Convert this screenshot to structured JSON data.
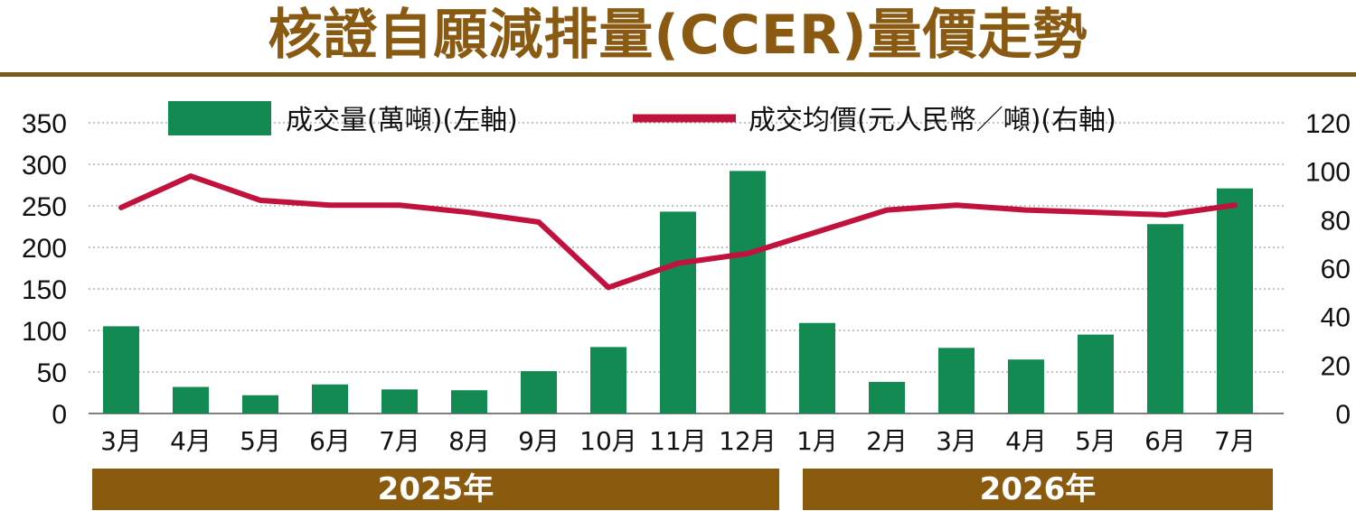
{
  "colors": {
    "title": "#8a5a12",
    "bar": "#128a52",
    "line": "#c0123c",
    "band": "#8a5a0f",
    "rule": "#7a5a1c"
  },
  "header": {
    "title": "核證自願減排量(CCER)量價走勢"
  },
  "chart_data": {
    "type": "bar+line",
    "categories": [
      "3月",
      "4月",
      "5月",
      "6月",
      "7月",
      "8月",
      "9月",
      "10月",
      "11月",
      "12月",
      "1月",
      "2月",
      "3月",
      "4月",
      "5月",
      "6月",
      "7月"
    ],
    "series": [
      {
        "name": "成交量(萬噸)(左軸)",
        "type": "bar",
        "axis": "left",
        "values": [
          105,
          32,
          22,
          35,
          29,
          28,
          51,
          80,
          243,
          292,
          109,
          38,
          79,
          65,
          95,
          228,
          271
        ]
      },
      {
        "name": "成交均價(元人民幣／噸)(右軸)",
        "type": "line",
        "axis": "right",
        "values": [
          85,
          98,
          88,
          86,
          86,
          83,
          79,
          52,
          62,
          66,
          75,
          84,
          86,
          84,
          83,
          82,
          86
        ]
      }
    ],
    "left_axis": {
      "ylim": [
        0,
        350
      ],
      "ticks": [
        "0",
        "50",
        "100",
        "150",
        "200",
        "250",
        "300",
        "350"
      ]
    },
    "right_axis": {
      "ylim": [
        0,
        120
      ],
      "ticks": [
        "0",
        "20",
        "40",
        "60",
        "80",
        "100",
        "120"
      ]
    },
    "year_groups": [
      {
        "label": "2025年",
        "months": 10
      },
      {
        "label": "2026年",
        "months": 7
      }
    ],
    "grid": true,
    "legend_position": "top"
  }
}
